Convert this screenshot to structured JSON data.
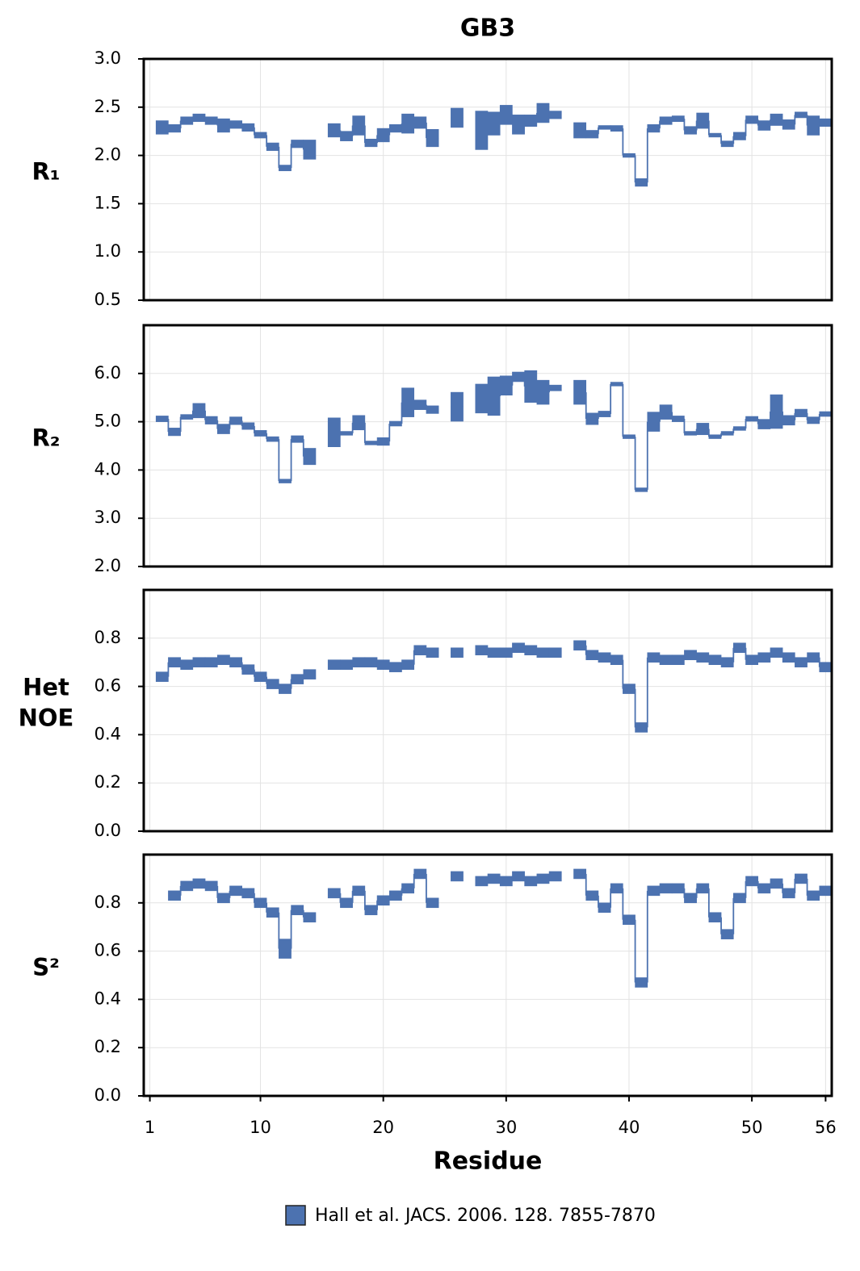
{
  "chart_data": [
    {
      "type": "step",
      "title": "GB3",
      "ylabel": "R₁",
      "x": [
        1,
        2,
        3,
        4,
        5,
        6,
        7,
        8,
        9,
        10,
        11,
        12,
        13,
        14,
        15,
        16,
        17,
        18,
        19,
        20,
        21,
        22,
        23,
        24,
        25,
        26,
        27,
        28,
        29,
        30,
        31,
        32,
        33,
        34,
        35,
        36,
        37,
        38,
        39,
        40,
        41,
        42,
        43,
        44,
        45,
        46,
        47,
        48,
        49,
        50,
        51,
        52,
        53,
        54,
        55,
        56
      ],
      "ylim": [
        0.5,
        3.0
      ],
      "yticks": [
        0.5,
        {
          "value": 1.0,
          "label": "1.0"
        },
        1.5,
        {
          "value": 2.0,
          "label": "2.0"
        },
        2.5,
        {
          "value": 3.0,
          "label": "3.0"
        }
      ],
      "grid": true,
      "series": [
        {
          "color": "#4c72b0",
          "values": [
            null,
            2.29,
            2.28,
            2.36,
            2.39,
            2.36,
            2.31,
            2.32,
            2.29,
            2.21,
            2.09,
            1.87,
            2.12,
            2.06,
            null,
            2.26,
            2.2,
            2.31,
            2.13,
            2.21,
            2.28,
            2.33,
            2.34,
            2.18,
            null,
            2.39,
            null,
            2.26,
            2.33,
            2.42,
            2.32,
            2.36,
            2.44,
            2.42,
            null,
            2.26,
            2.22,
            2.29,
            2.28,
            2.0,
            1.72,
            2.28,
            2.36,
            2.38,
            2.26,
            2.36,
            2.21,
            2.12,
            2.2,
            2.37,
            2.31,
            2.37,
            2.32,
            2.42,
            2.31,
            2.34
          ],
          "errors": [
            null,
            0.07,
            0.04,
            0.04,
            0.04,
            0.04,
            0.07,
            0.04,
            0.04,
            0.03,
            0.04,
            0.03,
            0.04,
            0.1,
            null,
            0.07,
            0.05,
            0.1,
            0.04,
            0.07,
            0.04,
            0.1,
            0.06,
            0.09,
            null,
            0.1,
            null,
            0.2,
            0.12,
            0.1,
            0.1,
            0.06,
            0.1,
            0.04,
            null,
            0.08,
            0.04,
            0.02,
            0.03,
            0.02,
            0.04,
            0.04,
            0.04,
            0.03,
            0.04,
            0.08,
            0.02,
            0.03,
            0.04,
            0.04,
            0.05,
            0.06,
            0.05,
            0.03,
            0.1,
            0.04
          ]
        }
      ]
    },
    {
      "type": "step",
      "ylabel": "R₂",
      "x": [
        1,
        2,
        3,
        4,
        5,
        6,
        7,
        8,
        9,
        10,
        11,
        12,
        13,
        14,
        15,
        16,
        17,
        18,
        19,
        20,
        21,
        22,
        23,
        24,
        25,
        26,
        27,
        28,
        29,
        30,
        31,
        32,
        33,
        34,
        35,
        36,
        37,
        38,
        39,
        40,
        41,
        42,
        43,
        44,
        45,
        46,
        47,
        48,
        49,
        50,
        51,
        52,
        53,
        54,
        55,
        56
      ],
      "ylim": [
        2.0,
        7.0
      ],
      "yticks": [
        {
          "value": 2.0,
          "label": "2.0"
        },
        {
          "value": 3.0,
          "label": "3.0"
        },
        {
          "value": 4.0,
          "label": "4.0"
        },
        {
          "value": 5.0,
          "label": "5.0"
        },
        {
          "value": 6.0,
          "label": "6.0"
        }
      ],
      "grid": true,
      "series": [
        {
          "color": "#4c72b0",
          "values": [
            null,
            5.06,
            4.79,
            5.1,
            5.23,
            5.03,
            4.85,
            5.02,
            4.91,
            4.76,
            4.64,
            3.77,
            4.64,
            4.28,
            null,
            4.78,
            4.76,
            4.98,
            4.56,
            4.59,
            4.96,
            5.4,
            5.35,
            5.25,
            null,
            5.31,
            null,
            5.48,
            5.53,
            5.75,
            5.93,
            5.73,
            5.61,
            5.7,
            null,
            5.61,
            5.06,
            5.16,
            5.78,
            4.69,
            3.59,
            5.0,
            5.2,
            5.06,
            4.76,
            4.85,
            4.69,
            4.76,
            4.86,
            5.06,
            4.95,
            5.21,
            5.03,
            5.18,
            5.03,
            5.16
          ],
          "errors": [
            null,
            0.06,
            0.08,
            0.05,
            0.15,
            0.08,
            0.1,
            0.08,
            0.07,
            0.06,
            0.05,
            0.04,
            0.07,
            0.17,
            null,
            0.3,
            0.04,
            0.15,
            0.04,
            0.08,
            0.05,
            0.3,
            0.1,
            0.08,
            null,
            0.3,
            null,
            0.3,
            0.4,
            0.2,
            0.1,
            0.33,
            0.25,
            0.06,
            null,
            0.25,
            0.12,
            0.06,
            0.04,
            0.04,
            0.04,
            0.2,
            0.15,
            0.06,
            0.04,
            0.12,
            0.04,
            0.04,
            0.04,
            0.05,
            0.1,
            0.35,
            0.1,
            0.08,
            0.07,
            0.05
          ]
        }
      ]
    },
    {
      "type": "step",
      "ylabel": "Het NOE",
      "x": [
        1,
        2,
        3,
        4,
        5,
        6,
        7,
        8,
        9,
        10,
        11,
        12,
        13,
        14,
        15,
        16,
        17,
        18,
        19,
        20,
        21,
        22,
        23,
        24,
        25,
        26,
        27,
        28,
        29,
        30,
        31,
        32,
        33,
        34,
        35,
        36,
        37,
        38,
        39,
        40,
        41,
        42,
        43,
        44,
        45,
        46,
        47,
        48,
        49,
        50,
        51,
        52,
        53,
        54,
        55,
        56
      ],
      "ylim": [
        0,
        1
      ],
      "yticks": [
        {
          "value": 0,
          "label": "0.0"
        },
        0.2,
        0.4,
        0.6,
        0.8
      ],
      "grid": true,
      "series": [
        {
          "color": "#4c72b0",
          "values": [
            null,
            0.64,
            0.7,
            0.69,
            0.7,
            0.7,
            0.71,
            0.7,
            0.67,
            0.64,
            0.61,
            0.59,
            0.63,
            0.65,
            null,
            0.69,
            0.69,
            0.7,
            0.7,
            0.69,
            0.68,
            0.69,
            0.75,
            0.74,
            null,
            0.74,
            null,
            0.75,
            0.74,
            0.74,
            0.76,
            0.75,
            0.74,
            0.74,
            null,
            0.77,
            0.73,
            0.72,
            0.71,
            0.59,
            0.43,
            0.72,
            0.71,
            0.71,
            0.73,
            0.72,
            0.71,
            0.7,
            0.76,
            0.71,
            0.72,
            0.74,
            0.72,
            0.7,
            0.72,
            0.68
          ],
          "errors": [
            null,
            0.02,
            0.02,
            0.02,
            0.02,
            0.02,
            0.02,
            0.02,
            0.02,
            0.02,
            0.02,
            0.02,
            0.02,
            0.02,
            null,
            0.02,
            0.02,
            0.02,
            0.02,
            0.02,
            0.02,
            0.02,
            0.02,
            0.02,
            null,
            0.02,
            null,
            0.02,
            0.02,
            0.02,
            0.02,
            0.02,
            0.02,
            0.02,
            null,
            0.02,
            0.02,
            0.02,
            0.02,
            0.02,
            0.02,
            0.02,
            0.02,
            0.02,
            0.02,
            0.02,
            0.02,
            0.02,
            0.02,
            0.02,
            0.02,
            0.02,
            0.02,
            0.02,
            0.02,
            0.02
          ]
        }
      ]
    },
    {
      "type": "step",
      "ylabel": "S²",
      "xlabel": "Residue",
      "x": [
        1,
        2,
        3,
        4,
        5,
        6,
        7,
        8,
        9,
        10,
        11,
        12,
        13,
        14,
        15,
        16,
        17,
        18,
        19,
        20,
        21,
        22,
        23,
        24,
        25,
        26,
        27,
        28,
        29,
        30,
        31,
        32,
        33,
        34,
        35,
        36,
        37,
        38,
        39,
        40,
        41,
        42,
        43,
        44,
        45,
        46,
        47,
        48,
        49,
        50,
        51,
        52,
        53,
        54,
        55,
        56
      ],
      "xlim": [
        0.5,
        56.5
      ],
      "xticks": [
        1,
        10,
        20,
        30,
        40,
        50,
        56
      ],
      "ylim": [
        0,
        1
      ],
      "yticks": [
        {
          "value": 0,
          "label": "0.0"
        },
        0.2,
        0.4,
        0.6,
        0.8
      ],
      "grid": true,
      "series": [
        {
          "name": "Hall et al. JACS. 2006. 128. 7855-7870",
          "color": "#4c72b0",
          "values": [
            null,
            null,
            0.83,
            0.87,
            0.88,
            0.87,
            0.82,
            0.85,
            0.84,
            0.8,
            0.76,
            0.61,
            0.77,
            0.74,
            null,
            0.84,
            0.8,
            0.85,
            0.77,
            0.81,
            0.83,
            0.86,
            0.92,
            0.8,
            null,
            0.91,
            null,
            0.89,
            0.9,
            0.89,
            0.91,
            0.89,
            0.9,
            0.91,
            null,
            0.92,
            0.83,
            0.78,
            0.86,
            0.73,
            0.47,
            0.85,
            0.86,
            0.86,
            0.82,
            0.86,
            0.74,
            0.67,
            0.82,
            0.89,
            0.86,
            0.88,
            0.84,
            0.9,
            0.83,
            0.85
          ],
          "errors": [
            null,
            null,
            0.02,
            0.02,
            0.02,
            0.02,
            0.02,
            0.02,
            0.02,
            0.02,
            0.02,
            0.04,
            0.02,
            0.02,
            null,
            0.02,
            0.02,
            0.02,
            0.02,
            0.02,
            0.02,
            0.02,
            0.02,
            0.02,
            null,
            0.02,
            null,
            0.02,
            0.02,
            0.02,
            0.02,
            0.02,
            0.02,
            0.02,
            null,
            0.02,
            0.02,
            0.02,
            0.02,
            0.02,
            0.02,
            0.02,
            0.02,
            0.02,
            0.02,
            0.02,
            0.02,
            0.02,
            0.02,
            0.02,
            0.02,
            0.02,
            0.02,
            0.02,
            0.02,
            0.02
          ]
        }
      ]
    }
  ]
}
